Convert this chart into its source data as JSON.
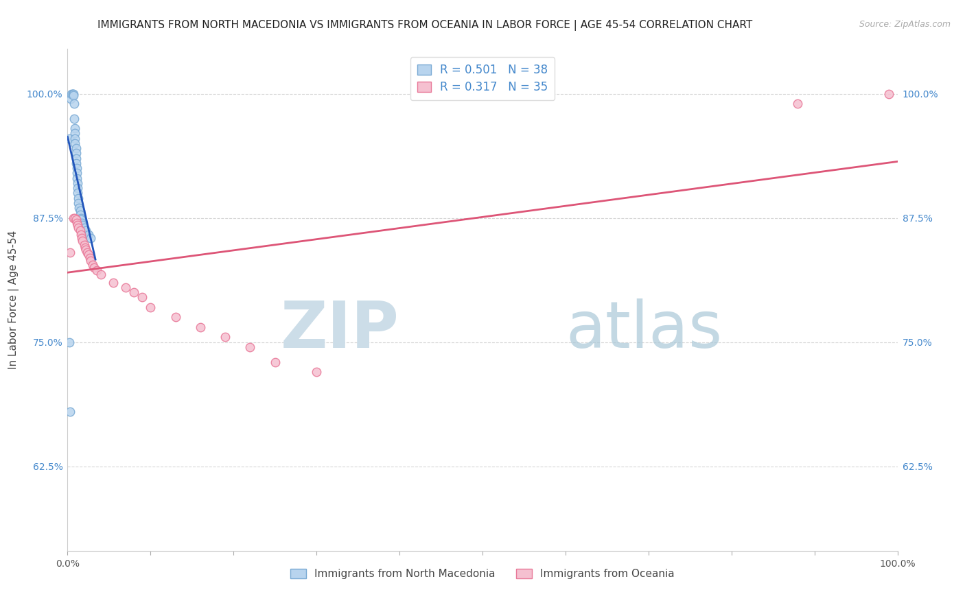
{
  "title": "IMMIGRANTS FROM NORTH MACEDONIA VS IMMIGRANTS FROM OCEANIA IN LABOR FORCE | AGE 45-54 CORRELATION CHART",
  "source": "Source: ZipAtlas.com",
  "ylabel": "In Labor Force | Age 45-54",
  "xlim": [
    0.0,
    1.0
  ],
  "ylim": [
    0.54,
    1.045
  ],
  "yticks": [
    0.625,
    0.75,
    0.875,
    1.0
  ],
  "ytick_labels": [
    "62.5%",
    "75.0%",
    "87.5%",
    "100.0%"
  ],
  "xticks": [
    0.0,
    0.1,
    0.2,
    0.3,
    0.4,
    0.5,
    0.6,
    0.7,
    0.8,
    0.9,
    1.0
  ],
  "xtick_labels": [
    "0.0%",
    "",
    "",
    "",
    "",
    "",
    "",
    "",
    "",
    "",
    "100.0%"
  ],
  "blue_r": 0.501,
  "blue_n": 38,
  "pink_r": 0.317,
  "pink_n": 35,
  "blue_fill": "#b8d4ee",
  "blue_edge": "#7aaad4",
  "pink_fill": "#f5c0d0",
  "pink_edge": "#e87898",
  "blue_line_color": "#2255bb",
  "pink_line_color": "#dd5577",
  "legend_label_blue": "Immigrants from North Macedonia",
  "legend_label_pink": "Immigrants from Oceania",
  "blue_x": [
    0.002,
    0.004,
    0.005,
    0.006,
    0.006,
    0.007,
    0.007,
    0.008,
    0.008,
    0.009,
    0.009,
    0.009,
    0.009,
    0.01,
    0.01,
    0.01,
    0.01,
    0.011,
    0.011,
    0.011,
    0.012,
    0.012,
    0.012,
    0.013,
    0.013,
    0.014,
    0.015,
    0.015,
    0.016,
    0.016,
    0.017,
    0.018,
    0.02,
    0.022,
    0.025,
    0.028,
    0.002,
    0.003
  ],
  "blue_y": [
    0.955,
    0.995,
    1.0,
    1.0,
    1.0,
    1.0,
    0.998,
    0.99,
    0.975,
    0.965,
    0.96,
    0.955,
    0.95,
    0.945,
    0.94,
    0.935,
    0.93,
    0.925,
    0.92,
    0.915,
    0.91,
    0.905,
    0.9,
    0.895,
    0.89,
    0.885,
    0.882,
    0.878,
    0.875,
    0.873,
    0.87,
    0.868,
    0.865,
    0.862,
    0.858,
    0.855,
    0.75,
    0.68
  ],
  "pink_x": [
    0.003,
    0.007,
    0.009,
    0.01,
    0.011,
    0.012,
    0.013,
    0.015,
    0.016,
    0.017,
    0.018,
    0.02,
    0.021,
    0.022,
    0.024,
    0.025,
    0.027,
    0.028,
    0.03,
    0.032,
    0.035,
    0.04,
    0.055,
    0.07,
    0.08,
    0.09,
    0.1,
    0.13,
    0.16,
    0.19,
    0.22,
    0.25,
    0.3,
    0.88,
    0.99
  ],
  "pink_y": [
    0.84,
    0.875,
    0.875,
    0.873,
    0.87,
    0.868,
    0.865,
    0.862,
    0.858,
    0.855,
    0.852,
    0.848,
    0.845,
    0.843,
    0.84,
    0.838,
    0.835,
    0.832,
    0.828,
    0.825,
    0.822,
    0.818,
    0.81,
    0.805,
    0.8,
    0.795,
    0.785,
    0.775,
    0.765,
    0.755,
    0.745,
    0.73,
    0.72,
    0.99,
    1.0
  ],
  "title_fontsize": 11,
  "axis_label_fontsize": 11,
  "tick_fontsize": 10,
  "marker_size": 9
}
